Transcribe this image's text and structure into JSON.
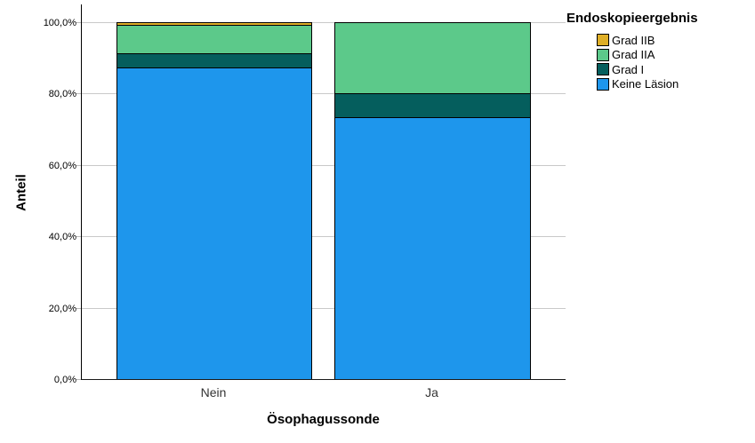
{
  "figure": {
    "background": "#FFFFFF"
  },
  "y_axis": {
    "title": "Anteil",
    "tick_labels": [
      "0,0%",
      "20,0%",
      "40,0%",
      "60,0%",
      "80,0%",
      "100,0%"
    ],
    "tick_values": [
      0,
      20,
      40,
      60,
      80,
      100
    ]
  },
  "x_axis": {
    "title": "Ösophagussonde",
    "categories": [
      "Nein",
      "Ja"
    ]
  },
  "legend": {
    "title": "Endoskopieergebnis",
    "items": [
      {
        "label": "Grad IIB",
        "color": "#DFAF27"
      },
      {
        "label": "Grad IIA",
        "color": "#5CC98A"
      },
      {
        "label": "Grad I",
        "color": "#055E5D"
      },
      {
        "label": "Keine Läsion",
        "color": "#1E96EC"
      }
    ]
  },
  "chart_data": {
    "type": "bar",
    "stacking": "percent",
    "categories": [
      "Nein",
      "Ja"
    ],
    "series": [
      {
        "name": "Keine Läsion",
        "color": "#1E96EC",
        "values": [
          87.2,
          73.3
        ]
      },
      {
        "name": "Grad I",
        "color": "#055E5D",
        "values": [
          4.1,
          6.7
        ]
      },
      {
        "name": "Grad IIA",
        "color": "#5CC98A",
        "values": [
          7.9,
          20.0
        ]
      },
      {
        "name": "Grad IIB",
        "color": "#DFAF27",
        "values": [
          0.8,
          0.0
        ]
      }
    ],
    "xlabel": "Ösophagussonde",
    "ylabel": "Anteil",
    "ylim": [
      0,
      100
    ],
    "ytick_values": [
      0,
      20,
      40,
      60,
      80,
      100
    ],
    "ytick_labels": [
      "0,0%",
      "20,0%",
      "40,0%",
      "60,0%",
      "80,0%",
      "100,0%"
    ],
    "grid": true,
    "legend_title": "Endoskopieergebnis",
    "legend_position": "top-right",
    "bar_border_color": "#000000"
  }
}
